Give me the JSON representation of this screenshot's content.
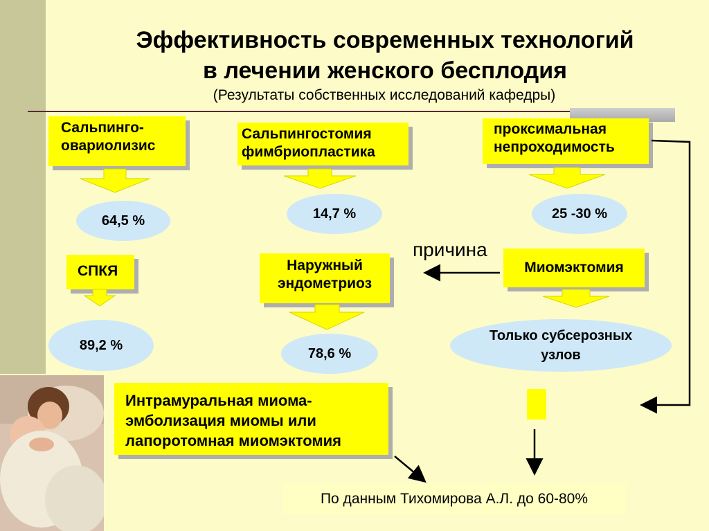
{
  "title": {
    "line1": "Эффективность современных технологий",
    "line2": "в лечении женского бесплодия",
    "subtitle": "(Результаты собственных исследований кафедры)"
  },
  "boxes": {
    "salpingo": "Сальпинго-\nовариолизис",
    "salpingostomy": "Сальпингостомия\nфимбриопластика",
    "proximal": "проксимальная\nнепроходимость",
    "spky": "СПКЯ",
    "endometriosis": "Наружный\nэндометриоз",
    "myomectomy": "Миомэктомия",
    "intramural": "Интрамуральная миома-\nэмболизация миомы или\nлапоротомная миомэктомия"
  },
  "results": {
    "r1": "64,5 %",
    "r2": "14,7 %",
    "r3": "25 -30 %",
    "r4": "89,2 %",
    "r5": "78,6 %",
    "r6": "Только субсерозных\nузлов"
  },
  "cause_label": "причина",
  "source_text": "По данным Тихомирова А.Л. до 60-80%",
  "colors": {
    "box": "#ffff00",
    "ellipse": "#cfe8f8",
    "background": "#fdfbc8",
    "arrow": "#000000"
  }
}
